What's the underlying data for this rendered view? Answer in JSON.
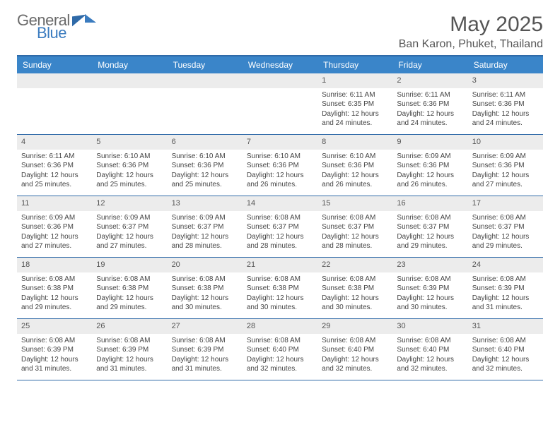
{
  "brand": {
    "line1": "General",
    "line2": "Blue"
  },
  "title": "May 2025",
  "location": "Ban Karon, Phuket, Thailand",
  "colors": {
    "header_bg": "#3a85c9",
    "border": "#2f6aa8",
    "daynum_bg": "#ececec",
    "text": "#444444",
    "title": "#555555"
  },
  "day_names": [
    "Sunday",
    "Monday",
    "Tuesday",
    "Wednesday",
    "Thursday",
    "Friday",
    "Saturday"
  ],
  "weeks": [
    [
      null,
      null,
      null,
      null,
      {
        "n": "1",
        "sr": "Sunrise: 6:11 AM",
        "ss": "Sunset: 6:35 PM",
        "dl": "Daylight: 12 hours and 24 minutes."
      },
      {
        "n": "2",
        "sr": "Sunrise: 6:11 AM",
        "ss": "Sunset: 6:36 PM",
        "dl": "Daylight: 12 hours and 24 minutes."
      },
      {
        "n": "3",
        "sr": "Sunrise: 6:11 AM",
        "ss": "Sunset: 6:36 PM",
        "dl": "Daylight: 12 hours and 24 minutes."
      }
    ],
    [
      {
        "n": "4",
        "sr": "Sunrise: 6:11 AM",
        "ss": "Sunset: 6:36 PM",
        "dl": "Daylight: 12 hours and 25 minutes."
      },
      {
        "n": "5",
        "sr": "Sunrise: 6:10 AM",
        "ss": "Sunset: 6:36 PM",
        "dl": "Daylight: 12 hours and 25 minutes."
      },
      {
        "n": "6",
        "sr": "Sunrise: 6:10 AM",
        "ss": "Sunset: 6:36 PM",
        "dl": "Daylight: 12 hours and 25 minutes."
      },
      {
        "n": "7",
        "sr": "Sunrise: 6:10 AM",
        "ss": "Sunset: 6:36 PM",
        "dl": "Daylight: 12 hours and 26 minutes."
      },
      {
        "n": "8",
        "sr": "Sunrise: 6:10 AM",
        "ss": "Sunset: 6:36 PM",
        "dl": "Daylight: 12 hours and 26 minutes."
      },
      {
        "n": "9",
        "sr": "Sunrise: 6:09 AM",
        "ss": "Sunset: 6:36 PM",
        "dl": "Daylight: 12 hours and 26 minutes."
      },
      {
        "n": "10",
        "sr": "Sunrise: 6:09 AM",
        "ss": "Sunset: 6:36 PM",
        "dl": "Daylight: 12 hours and 27 minutes."
      }
    ],
    [
      {
        "n": "11",
        "sr": "Sunrise: 6:09 AM",
        "ss": "Sunset: 6:36 PM",
        "dl": "Daylight: 12 hours and 27 minutes."
      },
      {
        "n": "12",
        "sr": "Sunrise: 6:09 AM",
        "ss": "Sunset: 6:37 PM",
        "dl": "Daylight: 12 hours and 27 minutes."
      },
      {
        "n": "13",
        "sr": "Sunrise: 6:09 AM",
        "ss": "Sunset: 6:37 PM",
        "dl": "Daylight: 12 hours and 28 minutes."
      },
      {
        "n": "14",
        "sr": "Sunrise: 6:08 AM",
        "ss": "Sunset: 6:37 PM",
        "dl": "Daylight: 12 hours and 28 minutes."
      },
      {
        "n": "15",
        "sr": "Sunrise: 6:08 AM",
        "ss": "Sunset: 6:37 PM",
        "dl": "Daylight: 12 hours and 28 minutes."
      },
      {
        "n": "16",
        "sr": "Sunrise: 6:08 AM",
        "ss": "Sunset: 6:37 PM",
        "dl": "Daylight: 12 hours and 29 minutes."
      },
      {
        "n": "17",
        "sr": "Sunrise: 6:08 AM",
        "ss": "Sunset: 6:37 PM",
        "dl": "Daylight: 12 hours and 29 minutes."
      }
    ],
    [
      {
        "n": "18",
        "sr": "Sunrise: 6:08 AM",
        "ss": "Sunset: 6:38 PM",
        "dl": "Daylight: 12 hours and 29 minutes."
      },
      {
        "n": "19",
        "sr": "Sunrise: 6:08 AM",
        "ss": "Sunset: 6:38 PM",
        "dl": "Daylight: 12 hours and 29 minutes."
      },
      {
        "n": "20",
        "sr": "Sunrise: 6:08 AM",
        "ss": "Sunset: 6:38 PM",
        "dl": "Daylight: 12 hours and 30 minutes."
      },
      {
        "n": "21",
        "sr": "Sunrise: 6:08 AM",
        "ss": "Sunset: 6:38 PM",
        "dl": "Daylight: 12 hours and 30 minutes."
      },
      {
        "n": "22",
        "sr": "Sunrise: 6:08 AM",
        "ss": "Sunset: 6:38 PM",
        "dl": "Daylight: 12 hours and 30 minutes."
      },
      {
        "n": "23",
        "sr": "Sunrise: 6:08 AM",
        "ss": "Sunset: 6:39 PM",
        "dl": "Daylight: 12 hours and 30 minutes."
      },
      {
        "n": "24",
        "sr": "Sunrise: 6:08 AM",
        "ss": "Sunset: 6:39 PM",
        "dl": "Daylight: 12 hours and 31 minutes."
      }
    ],
    [
      {
        "n": "25",
        "sr": "Sunrise: 6:08 AM",
        "ss": "Sunset: 6:39 PM",
        "dl": "Daylight: 12 hours and 31 minutes."
      },
      {
        "n": "26",
        "sr": "Sunrise: 6:08 AM",
        "ss": "Sunset: 6:39 PM",
        "dl": "Daylight: 12 hours and 31 minutes."
      },
      {
        "n": "27",
        "sr": "Sunrise: 6:08 AM",
        "ss": "Sunset: 6:39 PM",
        "dl": "Daylight: 12 hours and 31 minutes."
      },
      {
        "n": "28",
        "sr": "Sunrise: 6:08 AM",
        "ss": "Sunset: 6:40 PM",
        "dl": "Daylight: 12 hours and 32 minutes."
      },
      {
        "n": "29",
        "sr": "Sunrise: 6:08 AM",
        "ss": "Sunset: 6:40 PM",
        "dl": "Daylight: 12 hours and 32 minutes."
      },
      {
        "n": "30",
        "sr": "Sunrise: 6:08 AM",
        "ss": "Sunset: 6:40 PM",
        "dl": "Daylight: 12 hours and 32 minutes."
      },
      {
        "n": "31",
        "sr": "Sunrise: 6:08 AM",
        "ss": "Sunset: 6:40 PM",
        "dl": "Daylight: 12 hours and 32 minutes."
      }
    ]
  ]
}
